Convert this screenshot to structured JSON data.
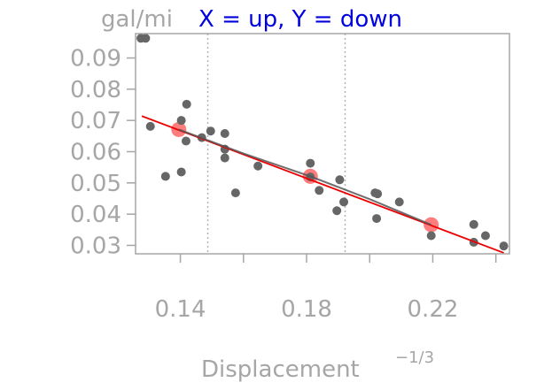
{
  "chart_data": {
    "type": "scatter",
    "title_unit": "gal/mi",
    "title": "X = up, Y = down",
    "xlabel": "Displacement",
    "xlabel_superscript": "−1/3",
    "ylabel": "",
    "xlim": [
      0.1258,
      0.2443
    ],
    "ylim": [
      0.0273,
      0.0978
    ],
    "x_ticks": [
      0.14,
      0.18,
      0.22
    ],
    "x_tick_labels": [
      "0.14",
      "0.18",
      "0.22"
    ],
    "y_ticks": [
      0.03,
      0.04,
      0.05,
      0.06,
      0.07,
      0.08,
      0.09
    ],
    "y_tick_labels": [
      "0.03",
      "0.04",
      "0.05",
      "0.06",
      "0.07",
      "0.08",
      "0.09"
    ],
    "grid": false,
    "vlines": [
      0.1487,
      0.1922
    ],
    "points": [
      {
        "x": 0.1275,
        "y": 0.0963
      },
      {
        "x": 0.129,
        "y": 0.0963
      },
      {
        "x": 0.1305,
        "y": 0.0681
      },
      {
        "x": 0.1353,
        "y": 0.0521
      },
      {
        "x": 0.1403,
        "y": 0.07
      },
      {
        "x": 0.1403,
        "y": 0.0535
      },
      {
        "x": 0.142,
        "y": 0.0752
      },
      {
        "x": 0.1418,
        "y": 0.0634
      },
      {
        "x": 0.1468,
        "y": 0.0645
      },
      {
        "x": 0.1496,
        "y": 0.0666
      },
      {
        "x": 0.1541,
        "y": 0.0658
      },
      {
        "x": 0.1541,
        "y": 0.0608
      },
      {
        "x": 0.1541,
        "y": 0.058
      },
      {
        "x": 0.1575,
        "y": 0.0468
      },
      {
        "x": 0.1646,
        "y": 0.0554
      },
      {
        "x": 0.1812,
        "y": 0.0563
      },
      {
        "x": 0.1812,
        "y": 0.0519
      },
      {
        "x": 0.184,
        "y": 0.0476
      },
      {
        "x": 0.1896,
        "y": 0.0411
      },
      {
        "x": 0.1905,
        "y": 0.051
      },
      {
        "x": 0.1918,
        "y": 0.0439
      },
      {
        "x": 0.2017,
        "y": 0.0468
      },
      {
        "x": 0.2025,
        "y": 0.0465
      },
      {
        "x": 0.2022,
        "y": 0.0386
      },
      {
        "x": 0.2094,
        "y": 0.0439
      },
      {
        "x": 0.2195,
        "y": 0.0331
      },
      {
        "x": 0.233,
        "y": 0.0367
      },
      {
        "x": 0.233,
        "y": 0.031
      },
      {
        "x": 0.2367,
        "y": 0.0331
      },
      {
        "x": 0.2425,
        "y": 0.0298
      }
    ],
    "highlight_points": [
      {
        "x": 0.1395,
        "y": 0.0671
      },
      {
        "x": 0.1812,
        "y": 0.0521
      },
      {
        "x": 0.2195,
        "y": 0.0366
      }
    ],
    "fit_line": {
      "x": [
        0.1278,
        0.2425
      ],
      "y": [
        0.0714,
        0.0276
      ]
    },
    "smooth_curve": {
      "x": [
        0.1395,
        0.16,
        0.1812,
        0.2,
        0.2195
      ],
      "y": [
        0.0671,
        0.0594,
        0.0521,
        0.0448,
        0.0366
      ]
    },
    "colors": {
      "points": "#666666",
      "highlight": "#ff6666",
      "fit_line": "#ee0000",
      "smooth_curve": "#555555",
      "vlines": "#b3b3b3",
      "frame": "#a6a6a6"
    }
  }
}
